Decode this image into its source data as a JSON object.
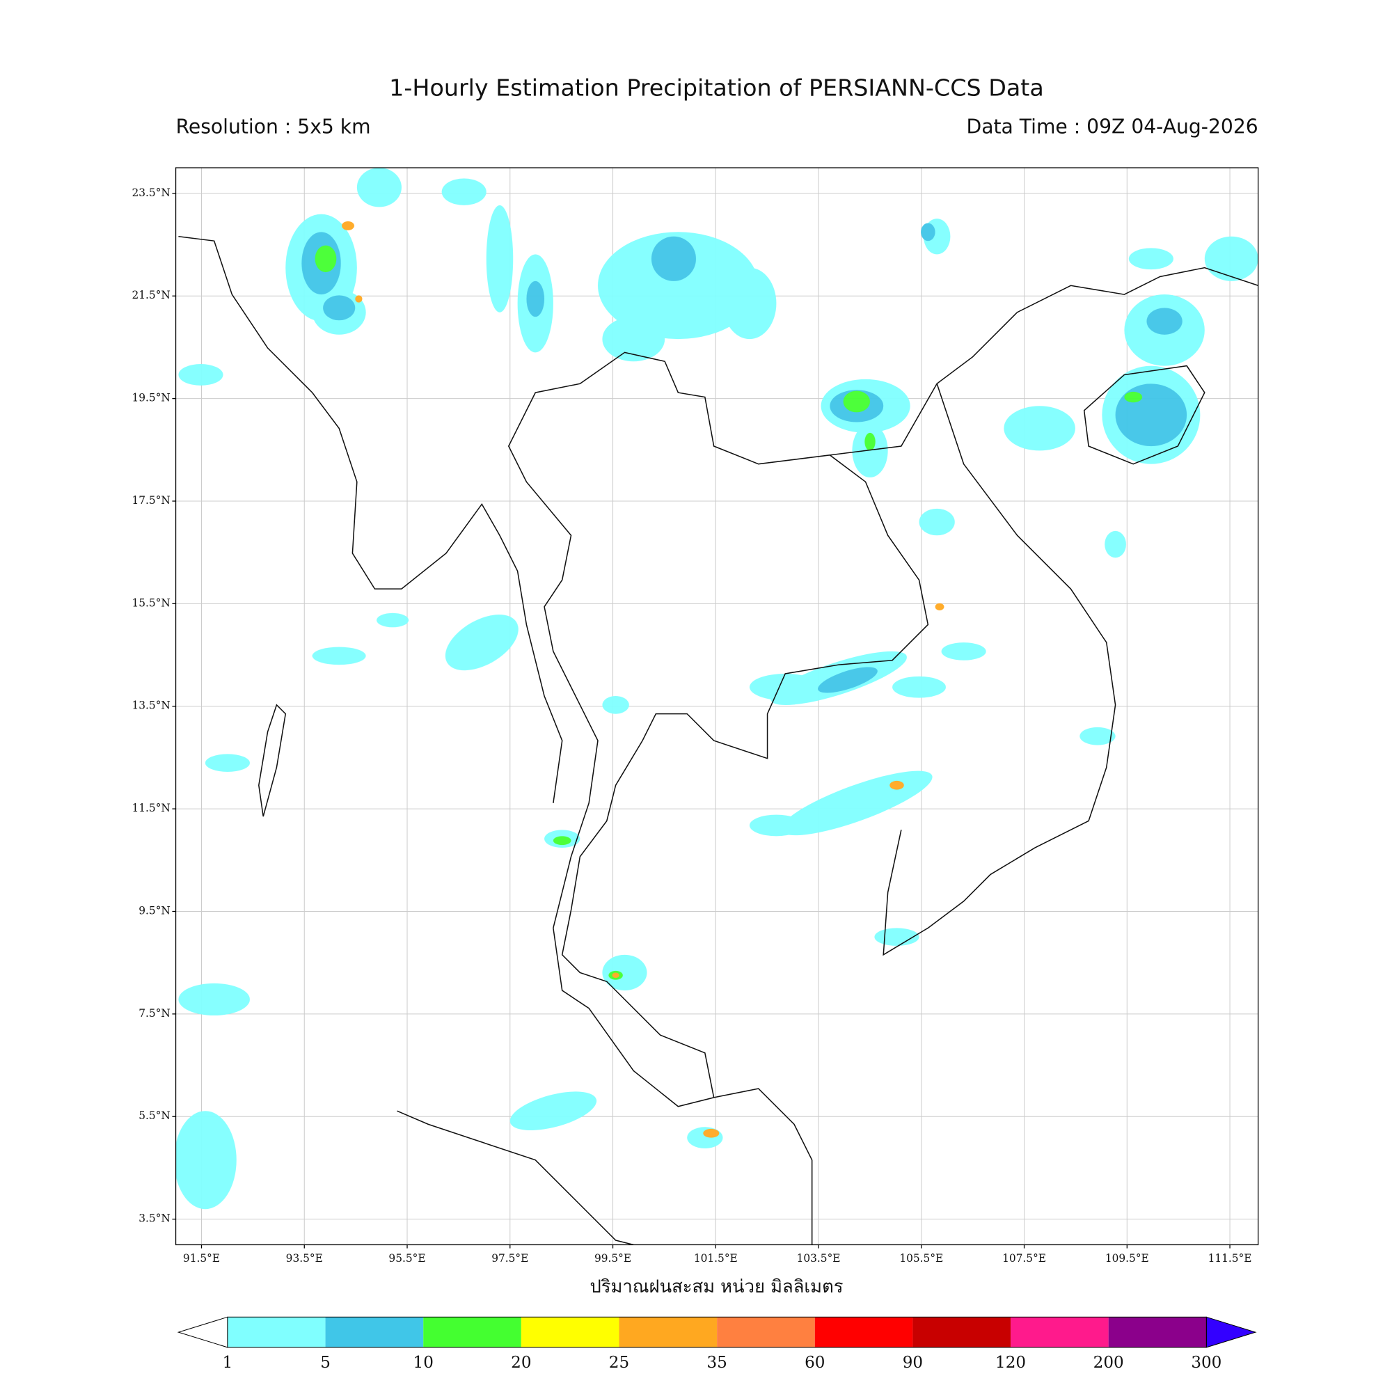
{
  "header": {
    "title": "1-Hourly Estimation Precipitation of PERSIANN-CCS Data",
    "resolution": "Resolution : 5x5 km",
    "data_time": "Data Time : 09Z 04-Aug-2026"
  },
  "map": {
    "lonlim": [
      91,
      112.05
    ],
    "latlim": [
      3,
      24
    ],
    "lat_ticks": [
      {
        "value": 23.5,
        "label": "23.5°N"
      },
      {
        "value": 21.5,
        "label": "21.5°N"
      },
      {
        "value": 19.5,
        "label": "19.5°N"
      },
      {
        "value": 17.5,
        "label": "17.5°N"
      },
      {
        "value": 15.5,
        "label": "15.5°N"
      },
      {
        "value": 13.5,
        "label": "13.5°N"
      },
      {
        "value": 11.5,
        "label": "11.5°N"
      },
      {
        "value": 9.5,
        "label": "9.5°N"
      },
      {
        "value": 7.5,
        "label": "7.5°N"
      },
      {
        "value": 5.5,
        "label": "5.5°N"
      },
      {
        "value": 3.5,
        "label": "3.5°N"
      }
    ],
    "lon_ticks": [
      {
        "value": 91.5,
        "label": "91.5°E"
      },
      {
        "value": 93.5,
        "label": "93.5°E"
      },
      {
        "value": 95.5,
        "label": "95.5°E"
      },
      {
        "value": 97.5,
        "label": "97.5°E"
      },
      {
        "value": 99.5,
        "label": "99.5°E"
      },
      {
        "value": 101.5,
        "label": "101.5°E"
      },
      {
        "value": 103.5,
        "label": "103.5°E"
      },
      {
        "value": 105.5,
        "label": "105.5°E"
      },
      {
        "value": 107.5,
        "label": "107.5°E"
      },
      {
        "value": 109.5,
        "label": "109.5°E"
      },
      {
        "value": 111.5,
        "label": "111.5°E"
      }
    ],
    "xlabel": "ปริมาณฝนสะสม หน่วย มิลลิเมตร",
    "grid": true
  },
  "colorbar": {
    "levels": [
      1,
      5,
      10,
      20,
      25,
      35,
      60,
      90,
      120,
      200,
      300
    ],
    "colors": [
      "#80ffff",
      "#40c6e8",
      "#44ff30",
      "#ffff00",
      "#ffa820",
      "#ff8040",
      "#ff0000",
      "#c80000",
      "#ff1a8c",
      "#8b008b"
    ],
    "under_color": "#ffffff",
    "over_color": "#3300ff"
  }
}
